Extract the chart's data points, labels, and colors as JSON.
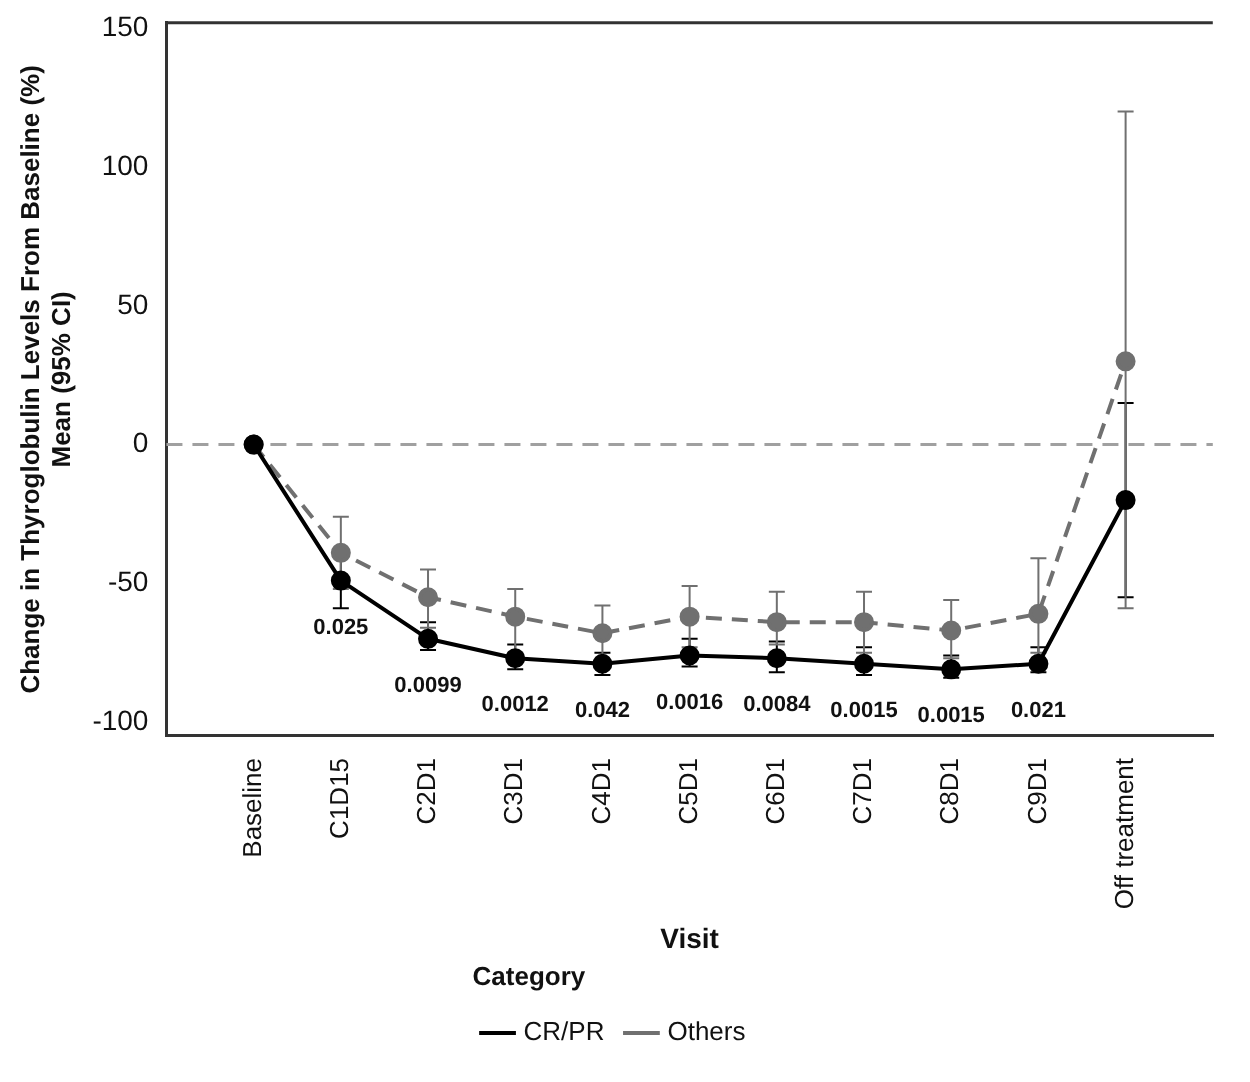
{
  "chart_data": {
    "type": "line",
    "xlabel": "Visit",
    "ylabel": "Change in Thyroglobulin Levels From Baseline (%)\nMean (95% CI)",
    "categories": [
      null,
      "Baseline",
      "C1D15",
      "C2D1",
      "C3D1",
      "C4D1",
      "C5D1",
      "C6D1",
      "C7D1",
      "C8D1",
      "C9D1",
      "Off treatment",
      null
    ],
    "series": [
      {
        "name": "CR/PR",
        "color": "#000000",
        "line_style": "solid",
        "values": [
          null,
          0,
          -49,
          -70,
          -77,
          -79,
          -76,
          -77,
          -79,
          -81,
          -79,
          -20,
          null
        ],
        "errors": [
          null,
          null,
          [
            -59,
            -40
          ],
          [
            -74,
            -64
          ],
          [
            -81,
            -72
          ],
          [
            -83,
            -75
          ],
          [
            -80,
            -70
          ],
          [
            -82,
            -71
          ],
          [
            -83,
            -73
          ],
          [
            -84,
            -76
          ],
          [
            -82,
            -73
          ],
          [
            -55,
            15
          ],
          null
        ]
      },
      {
        "name": "Others",
        "color": "#707070",
        "line_style": "dashed",
        "values": [
          null,
          0,
          -39,
          -55,
          -62,
          -68,
          -62,
          -64,
          -64,
          -67,
          -61,
          30,
          null
        ],
        "errors": [
          null,
          null,
          [
            -52,
            -26
          ],
          [
            -66,
            -45
          ],
          [
            -75,
            -52
          ],
          [
            -78,
            -58
          ],
          [
            -73,
            -51
          ],
          [
            -72,
            -53
          ],
          [
            -75,
            -53
          ],
          [
            -77,
            -56
          ],
          [
            -75,
            -41
          ],
          [
            -59,
            120
          ],
          null
        ]
      }
    ],
    "ylim": [
      -105,
      152
    ],
    "yticks": [
      -100,
      -50,
      0,
      50,
      100,
      150
    ],
    "ref_lines": [
      {
        "axis": "y",
        "value": 0,
        "color": "#a0a0a0",
        "line_style": "dashed"
      }
    ],
    "annotations": [
      {
        "text": "0.025",
        "x": "C1D15",
        "y": -49
      },
      {
        "text": "0.0099",
        "x": "C2D1",
        "y": -70
      },
      {
        "text": "0.0012",
        "x": "C3D1",
        "y": -77
      },
      {
        "text": "0.042",
        "x": "C4D1",
        "y": -79
      },
      {
        "text": "0.0016",
        "x": "C5D1",
        "y": -76
      },
      {
        "text": "0.0084",
        "x": "C6D1",
        "y": -77
      },
      {
        "text": "0.0015",
        "x": "C7D1",
        "y": -79
      },
      {
        "text": "0.0015",
        "x": "C8D1",
        "y": -81
      },
      {
        "text": "0.021",
        "x": "C9D1",
        "y": -79
      }
    ],
    "grid": false,
    "legend": "bottom",
    "legend_title": "Category",
    "marker": "circle"
  }
}
